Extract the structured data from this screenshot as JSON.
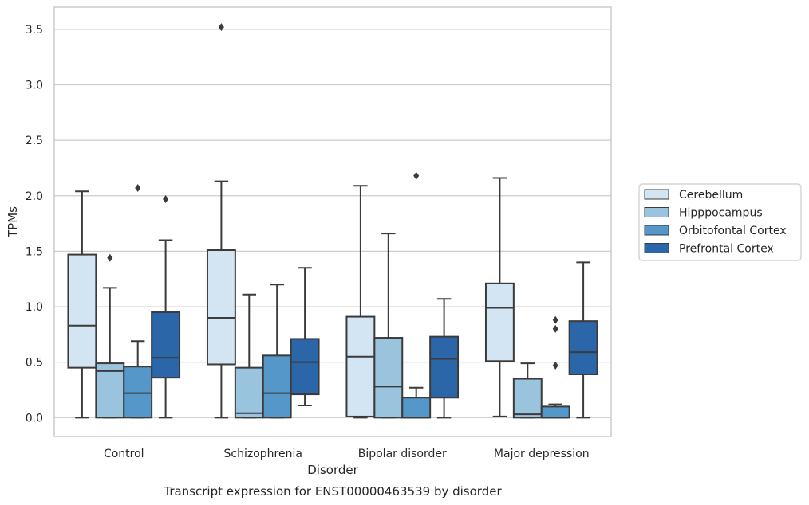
{
  "chart_data": {
    "type": "box",
    "title": "",
    "caption": "Transcript expression for ENST00000463539 by disorder",
    "xlabel": "Disorder",
    "ylabel": "TPMs",
    "ylim": [
      -0.17,
      3.7
    ],
    "yticks": [
      "0.0",
      "0.5",
      "1.0",
      "1.5",
      "2.0",
      "2.5",
      "3.0",
      "3.5"
    ],
    "grid": "horizontal",
    "legend_position": "right",
    "categories": [
      "Control",
      "Schizophrenia",
      "Bipolar disorder",
      "Major depression"
    ],
    "series": [
      {
        "name": "Cerebellum",
        "color": "#d3e4f3",
        "boxes": [
          {
            "whislo": 0.0,
            "q1": 0.45,
            "med": 0.83,
            "q3": 1.47,
            "whishi": 2.04,
            "fliers": []
          },
          {
            "whislo": 0.0,
            "q1": 0.48,
            "med": 0.9,
            "q3": 1.51,
            "whishi": 2.13,
            "fliers": [
              3.52
            ]
          },
          {
            "whislo": 0.0,
            "q1": 0.01,
            "med": 0.55,
            "q3": 0.91,
            "whishi": 2.09,
            "fliers": []
          },
          {
            "whislo": 0.01,
            "q1": 0.51,
            "med": 0.99,
            "q3": 1.21,
            "whishi": 2.16,
            "fliers": []
          }
        ]
      },
      {
        "name": "Hipppocampus",
        "color": "#9ac3de",
        "boxes": [
          {
            "whislo": 0.0,
            "q1": 0.0,
            "med": 0.42,
            "q3": 0.49,
            "whishi": 1.17,
            "fliers": [
              1.44
            ]
          },
          {
            "whislo": 0.0,
            "q1": 0.0,
            "med": 0.04,
            "q3": 0.45,
            "whishi": 1.11,
            "fliers": []
          },
          {
            "whislo": 0.0,
            "q1": 0.0,
            "med": 0.28,
            "q3": 0.72,
            "whishi": 1.66,
            "fliers": []
          },
          {
            "whislo": 0.0,
            "q1": 0.0,
            "med": 0.03,
            "q3": 0.35,
            "whishi": 0.49,
            "fliers": []
          }
        ]
      },
      {
        "name": "Orbitofontal Cortex",
        "color": "#5597c8",
        "boxes": [
          {
            "whislo": 0.0,
            "q1": 0.0,
            "med": 0.22,
            "q3": 0.46,
            "whishi": 0.69,
            "fliers": [
              2.07
            ]
          },
          {
            "whislo": 0.0,
            "q1": 0.0,
            "med": 0.22,
            "q3": 0.56,
            "whishi": 1.2,
            "fliers": []
          },
          {
            "whislo": 0.0,
            "q1": 0.0,
            "med": 0.0,
            "q3": 0.18,
            "whishi": 0.27,
            "fliers": [
              2.18
            ]
          },
          {
            "whislo": 0.0,
            "q1": 0.0,
            "med": 0.0,
            "q3": 0.1,
            "whishi": 0.12,
            "fliers": [
              0.47,
              0.8,
              0.88
            ]
          }
        ]
      },
      {
        "name": "Prefrontal Cortex",
        "color": "#2a66a8",
        "boxes": [
          {
            "whislo": 0.0,
            "q1": 0.36,
            "med": 0.54,
            "q3": 0.95,
            "whishi": 1.6,
            "fliers": [
              1.97
            ]
          },
          {
            "whislo": 0.11,
            "q1": 0.21,
            "med": 0.5,
            "q3": 0.71,
            "whishi": 1.35,
            "fliers": []
          },
          {
            "whislo": 0.0,
            "q1": 0.18,
            "med": 0.53,
            "q3": 0.73,
            "whishi": 1.07,
            "fliers": []
          },
          {
            "whislo": 0.0,
            "q1": 0.39,
            "med": 0.59,
            "q3": 0.87,
            "whishi": 1.4,
            "fliers": []
          }
        ]
      }
    ]
  }
}
